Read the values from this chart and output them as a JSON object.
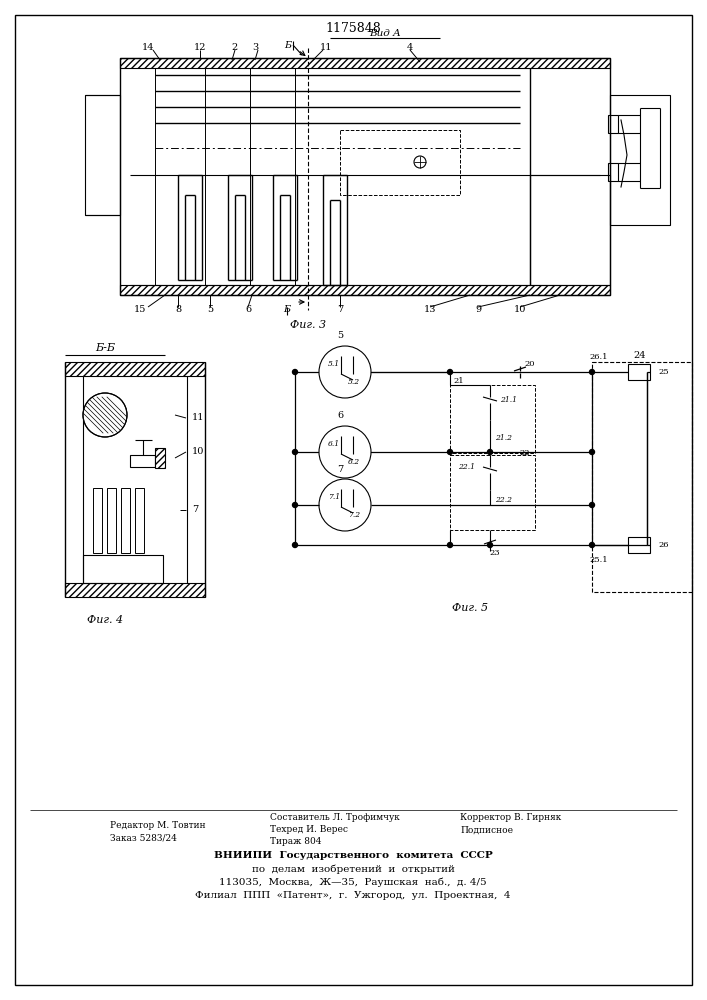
{
  "patent_number": "1175848",
  "fig3_label": "Фиг. 3",
  "fig4_label": "Фиг. 4",
  "fig5_label": "Фиг. 5",
  "bb_label": "Б-Б",
  "vid_a_label": "Вид A",
  "footer_editor": "Редактор М. Товтин",
  "footer_order": "Заказ 5283/24",
  "footer_compiler": "Составитель Л. Трофимчук",
  "footer_tech": "Техред И. Верес",
  "footer_tirazh": "Тираж 804",
  "footer_corrector": "Корректор В. Гирняк",
  "footer_podpisnoe": "Подписное",
  "footer_vn1": "ВНИИПИ  Государственного  комитета  СССР",
  "footer_vn2": "по  делам  изобретений  и  открытий",
  "footer_vn3": "113035,  Москва,  Ж—35,  Раушская  наб.,  д. 4/5",
  "footer_vn4": "Филиал  ППП  «Патент»,  г.  Ужгород,  ул.  Проектная,  4"
}
